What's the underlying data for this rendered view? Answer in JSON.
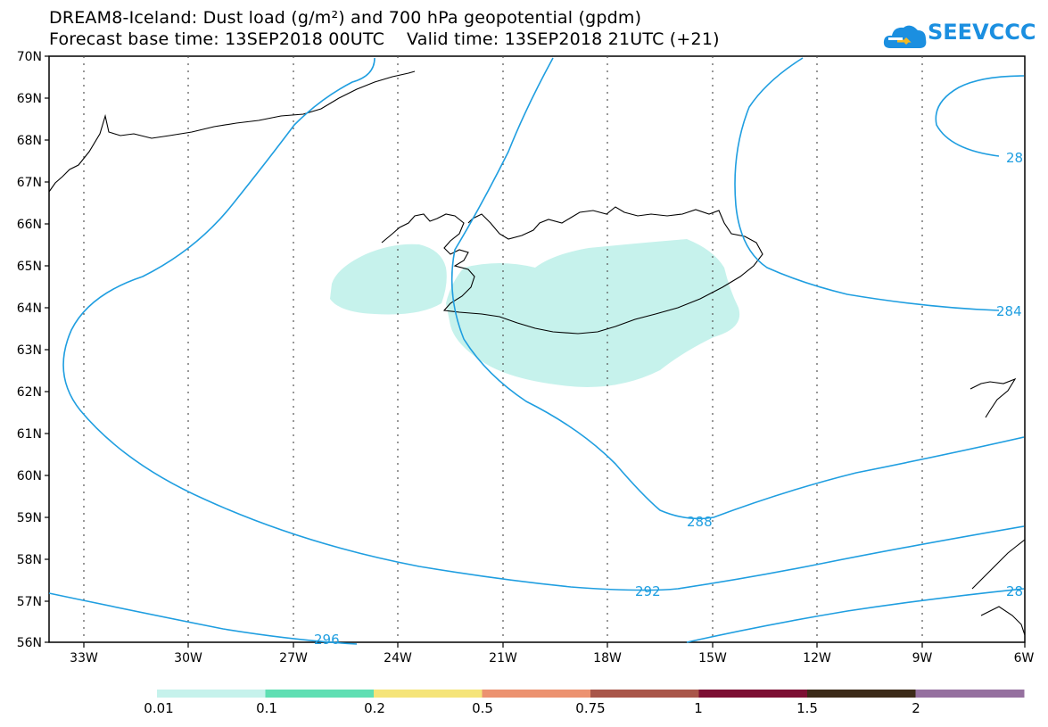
{
  "title": {
    "line1": "DREAM8-Iceland: Dust load (g/m²) and 700 hPa geopotential (gpdm)",
    "line2": "Forecast base time: 13SEP2018 00UTC    Valid time: 13SEP2018 21UTC (+21)"
  },
  "logo": {
    "text": "SEEVCCC",
    "icon": "cloud-icon",
    "color": "#1b8fe0"
  },
  "axes": {
    "lat_labels": [
      "70N",
      "69N",
      "68N",
      "67N",
      "66N",
      "65N",
      "64N",
      "63N",
      "62N",
      "61N",
      "60N",
      "59N",
      "58N",
      "57N",
      "56N"
    ],
    "lon_labels": [
      "33W",
      "30W",
      "27W",
      "24W",
      "21W",
      "18W",
      "15W",
      "12W",
      "9W",
      "6W"
    ]
  },
  "contours": {
    "color": "#1f9ee0",
    "labels": [
      "288",
      "292",
      "296",
      "284",
      "28",
      "28"
    ]
  },
  "dust_fill_color": "#c6f2ec",
  "legend": {
    "colors": [
      "#c6f2ec",
      "#5fdfb3",
      "#f5e479",
      "#ec9270",
      "#a9564a",
      "#7c0f33",
      "#3c2a18",
      "#95709f"
    ],
    "labels": [
      "0.01",
      "0.1",
      "0.2",
      "0.5",
      "0.75",
      "1",
      "1.5",
      "2"
    ]
  }
}
